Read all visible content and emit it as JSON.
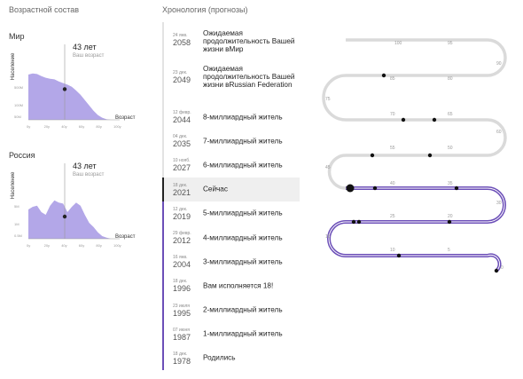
{
  "headers": {
    "left": "Возрастной состав",
    "timeline": "Хронология (прогнозы)"
  },
  "colors": {
    "accent": "#6c4fb8",
    "area": "#b3a7e8",
    "track": "#dadada"
  },
  "age_charts": [
    {
      "region": "Мир",
      "age": "43 лет",
      "age_sub": "Ваш возраст",
      "ylabel": "Население",
      "xlabel": "Возраст",
      "y_ticks": [
        "500M",
        "100M",
        "50M"
      ],
      "x_ticks": [
        "0y",
        "20y",
        "40y",
        "60y",
        "80y",
        "100y"
      ],
      "chart_data": {
        "type": "area",
        "x": [
          0,
          5,
          10,
          15,
          20,
          25,
          30,
          35,
          40,
          45,
          50,
          55,
          60,
          65,
          70,
          75,
          80,
          85,
          90,
          95,
          100
        ],
        "values": [
          0.85,
          0.87,
          0.86,
          0.82,
          0.79,
          0.77,
          0.76,
          0.72,
          0.69,
          0.66,
          0.62,
          0.55,
          0.47,
          0.37,
          0.27,
          0.17,
          0.09,
          0.04,
          0.01,
          0,
          0
        ]
      }
    },
    {
      "region": "Россия",
      "age": "43 лет",
      "age_sub": "Ваш возраст",
      "ylabel": "Население",
      "xlabel": "Возраст",
      "y_ticks": [
        "5M",
        "1M",
        "0.5M"
      ],
      "x_ticks": [
        "0y",
        "20y",
        "40y",
        "60y",
        "80y",
        "100y"
      ],
      "chart_data": {
        "type": "area",
        "x": [
          0,
          5,
          10,
          15,
          20,
          25,
          30,
          35,
          40,
          45,
          50,
          55,
          60,
          65,
          70,
          75,
          80,
          85,
          90,
          95,
          100
        ],
        "values": [
          0.55,
          0.6,
          0.62,
          0.5,
          0.45,
          0.62,
          0.72,
          0.68,
          0.66,
          0.5,
          0.6,
          0.68,
          0.62,
          0.45,
          0.3,
          0.22,
          0.12,
          0.05,
          0.02,
          0,
          0
        ]
      }
    }
  ],
  "timeline": [
    {
      "day": "24 янв.",
      "year": "2058",
      "label": "Ожидаемая продолжительность Вашей жизни вМир",
      "state": "future",
      "kind": "first"
    },
    {
      "day": "23 дек.",
      "year": "2049",
      "label": "Ожидаемая продолжительность Вашей жизни вRussian Federation",
      "state": "future",
      "kind": "tall"
    },
    {
      "day": "12 февр.",
      "year": "2044",
      "label": "8-миллиардный житель",
      "state": "future",
      "kind": ""
    },
    {
      "day": "04 дек.",
      "year": "2035",
      "label": "7-миллиардный житель",
      "state": "future",
      "kind": ""
    },
    {
      "day": "10 нояб.",
      "year": "2027",
      "label": "6-миллиардный житель",
      "state": "future",
      "kind": ""
    },
    {
      "day": "18 дек.",
      "year": "2021",
      "label": "Сейчас",
      "state": "now",
      "kind": ""
    },
    {
      "day": "12 дек.",
      "year": "2019",
      "label": "5-миллиардный житель",
      "state": "past",
      "kind": ""
    },
    {
      "day": "29 февр.",
      "year": "2012",
      "label": "4-миллиардный житель",
      "state": "past",
      "kind": ""
    },
    {
      "day": "16 янв.",
      "year": "2004",
      "label": "3-миллиардный житель",
      "state": "past",
      "kind": ""
    },
    {
      "day": "18 дек.",
      "year": "1996",
      "label": "Вам исполняется 18!",
      "state": "past",
      "kind": ""
    },
    {
      "day": "23 июля",
      "year": "1995",
      "label": "2-миллиардный житель",
      "state": "past",
      "kind": ""
    },
    {
      "day": "07 июня",
      "year": "1987",
      "label": "1-миллиардный житель",
      "state": "past",
      "kind": ""
    },
    {
      "day": "18 дек.",
      "year": "1978",
      "label": "Родились",
      "state": "past",
      "kind": ""
    }
  ],
  "snake": {
    "labels": [
      "100",
      "95",
      "90",
      "85",
      "80",
      "75",
      "70",
      "65",
      "60",
      "55",
      "50",
      "45",
      "40",
      "35",
      "30",
      "25",
      "20",
      "15",
      "10",
      "5",
      "0"
    ]
  }
}
